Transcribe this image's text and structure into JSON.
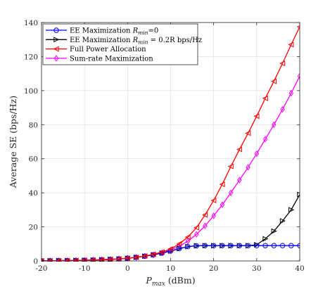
{
  "chart_data": {
    "type": "line",
    "xlabel_main": "P",
    "xlabel_sub": "max",
    "xlabel_unit": " (dBm)",
    "ylabel": "Average SE (bps/Hz)",
    "xlim": [
      -20,
      40
    ],
    "ylim": [
      0,
      140
    ],
    "xticks": [
      -20,
      -10,
      0,
      10,
      20,
      30,
      40
    ],
    "xtick_labels": [
      "-20",
      "-10",
      "0",
      "10",
      "20",
      "30",
      "40"
    ],
    "yticks": [
      0,
      20,
      40,
      60,
      80,
      100,
      120,
      140
    ],
    "ytick_labels": [
      "0",
      "20",
      "40",
      "60",
      "80",
      "100",
      "120",
      "140"
    ],
    "grid": true,
    "legend_position": "top-left",
    "x": [
      -20,
      -18,
      -16,
      -14,
      -12,
      -10,
      -8,
      -6,
      -4,
      -2,
      0,
      2,
      4,
      6,
      8,
      10,
      12,
      14,
      16,
      18,
      20,
      22,
      24,
      26,
      28,
      30,
      32,
      34,
      36,
      38,
      40
    ],
    "series": [
      {
        "legend_pre": "EE Maximization ",
        "legend_sym": "R",
        "legend_sub": "min",
        "legend_post": "=0",
        "color": "#0000ff",
        "marker": "circle",
        "values": [
          0.1,
          0.1,
          0.2,
          0.2,
          0.3,
          0.4,
          0.5,
          0.7,
          0.9,
          1.2,
          1.6,
          2.1,
          2.8,
          3.6,
          4.6,
          5.8,
          7.3,
          8.4,
          8.9,
          9.0,
          9.0,
          9.0,
          9.0,
          9.0,
          9.0,
          9.0,
          9.0,
          9.0,
          9.0,
          9.0,
          9.0
        ]
      },
      {
        "legend_pre": "EE Maximization ",
        "legend_sym": "R",
        "legend_sub": "min",
        "legend_post": " = 0.2R bps/Hz",
        "color": "#000000",
        "marker": "triangle-right",
        "values": [
          0.1,
          0.1,
          0.2,
          0.2,
          0.3,
          0.4,
          0.5,
          0.7,
          0.9,
          1.2,
          1.6,
          2.1,
          2.8,
          3.6,
          4.6,
          5.8,
          7.3,
          8.4,
          8.9,
          9.0,
          9.0,
          9.0,
          9.0,
          9.0,
          9.0,
          9.5,
          13.0,
          17.5,
          23.5,
          30.0,
          39.0
        ]
      },
      {
        "legend_pre": "Full Power Allocation",
        "legend_sym": "",
        "legend_sub": "",
        "legend_post": "",
        "color": "#ff0000",
        "marker": "triangle-left",
        "values": [
          0.1,
          0.1,
          0.2,
          0.2,
          0.3,
          0.4,
          0.5,
          0.7,
          0.9,
          1.2,
          1.6,
          2.1,
          2.9,
          3.9,
          5.2,
          7.0,
          10.0,
          14.0,
          19.5,
          27.0,
          35.5,
          45.0,
          55.5,
          65.5,
          75.0,
          85.0,
          95.5,
          105.5,
          116.0,
          127.0,
          137.5
        ]
      },
      {
        "legend_pre": "Sum-rate Maximization",
        "legend_sym": "",
        "legend_sub": "",
        "legend_post": "",
        "color": "#ff00ff",
        "marker": "diamond",
        "values": [
          0.1,
          0.1,
          0.2,
          0.2,
          0.3,
          0.4,
          0.5,
          0.7,
          0.9,
          1.2,
          1.6,
          2.1,
          2.8,
          3.6,
          4.8,
          6.4,
          8.6,
          11.6,
          15.6,
          20.6,
          26.5,
          33.0,
          40.0,
          47.5,
          55.0,
          63.0,
          71.5,
          80.0,
          89.0,
          98.5,
          108.5
        ]
      }
    ]
  }
}
